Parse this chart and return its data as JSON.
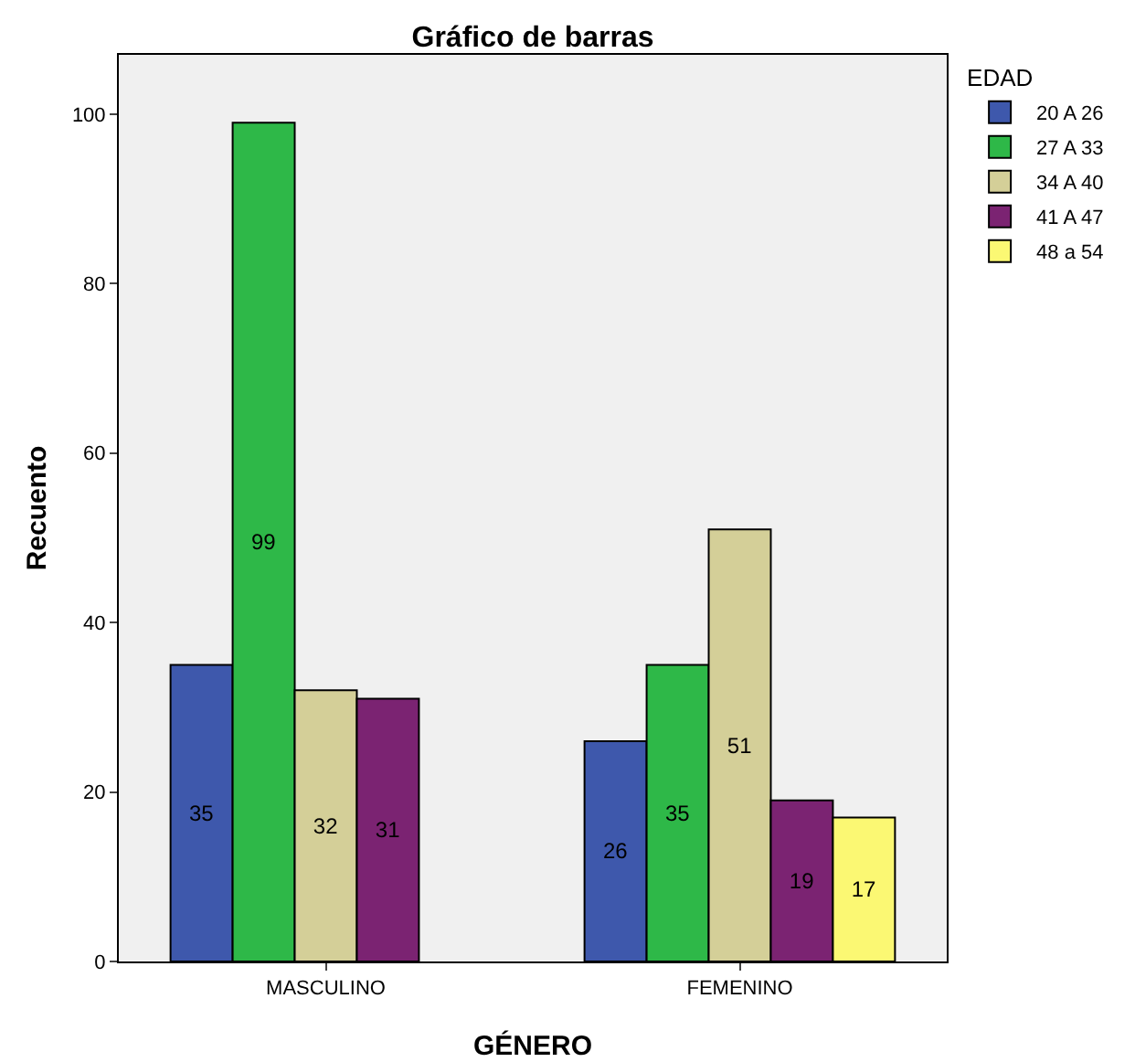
{
  "chart_data": {
    "type": "bar",
    "title": "Gráfico de barras",
    "xlabel": "GÉNERO",
    "ylabel": "Recuento",
    "legend_title": "EDAD",
    "categories": [
      "MASCULINO",
      "FEMENINO"
    ],
    "series": [
      {
        "name": "20 A 26",
        "color": "#3e58ac",
        "values": [
          35,
          26
        ]
      },
      {
        "name": "27 A 33",
        "color": "#2eb848",
        "values": [
          99,
          35
        ]
      },
      {
        "name": "34 A 40",
        "color": "#d4cf98",
        "values": [
          32,
          51
        ]
      },
      {
        "name": "41 A 47",
        "color": "#7b2372",
        "values": [
          31,
          19
        ]
      },
      {
        "name": "48 a 54",
        "color": "#fbf873",
        "values": [
          null,
          17
        ]
      }
    ],
    "ylim": [
      0,
      107
    ],
    "yticks": [
      0,
      20,
      40,
      60,
      80,
      100
    ],
    "grid": false,
    "legend": "top right",
    "data_labels": true
  }
}
